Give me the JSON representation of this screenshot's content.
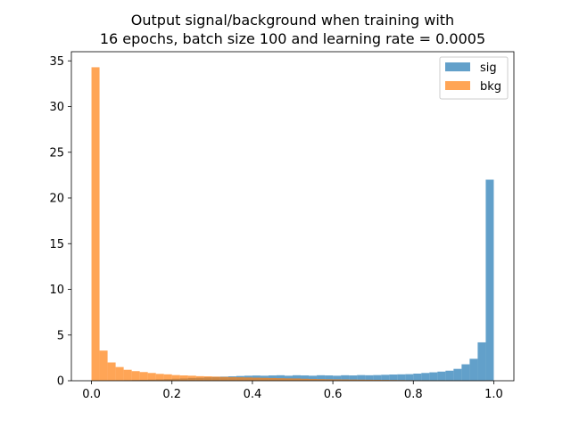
{
  "chart_data": {
    "type": "histogram",
    "title_line1": "Output signal/background when training with",
    "title_line2": "16 epochs, batch size 100 and learning rate = 0.0005",
    "xlabel": "",
    "ylabel": "",
    "xlim": [
      -0.05,
      1.05
    ],
    "ylim": [
      0,
      36
    ],
    "grid": false,
    "legend_position": "top-right",
    "x_ticks": [
      0.0,
      0.2,
      0.4,
      0.6,
      0.8,
      1.0
    ],
    "x_tick_labels": [
      "0.0",
      "0.2",
      "0.4",
      "0.6",
      "0.8",
      "1.0"
    ],
    "y_ticks": [
      0,
      5,
      10,
      15,
      20,
      25,
      30,
      35
    ],
    "y_tick_labels": [
      "0",
      "5",
      "10",
      "15",
      "20",
      "25",
      "30",
      "35"
    ],
    "bin_edges_range": [
      0.0,
      1.0
    ],
    "bin_count": 50,
    "series": [
      {
        "name": "sig",
        "color": "#1f77b4",
        "opacity": 0.7,
        "values": [
          0.02,
          0.03,
          0.04,
          0.05,
          0.06,
          0.08,
          0.1,
          0.12,
          0.15,
          0.18,
          0.22,
          0.25,
          0.3,
          0.33,
          0.38,
          0.42,
          0.45,
          0.48,
          0.52,
          0.55,
          0.57,
          0.55,
          0.58,
          0.6,
          0.55,
          0.6,
          0.58,
          0.55,
          0.6,
          0.58,
          0.55,
          0.6,
          0.58,
          0.62,
          0.6,
          0.62,
          0.65,
          0.68,
          0.7,
          0.72,
          0.78,
          0.85,
          0.92,
          1.0,
          1.1,
          1.3,
          1.8,
          2.4,
          4.2,
          22.0
        ]
      },
      {
        "name": "bkg",
        "color": "#ff7f0e",
        "opacity": 0.7,
        "values": [
          34.3,
          3.3,
          2.0,
          1.5,
          1.2,
          1.05,
          0.95,
          0.85,
          0.75,
          0.7,
          0.62,
          0.58,
          0.55,
          0.5,
          0.48,
          0.45,
          0.42,
          0.4,
          0.38,
          0.36,
          0.34,
          0.32,
          0.3,
          0.28,
          0.26,
          0.25,
          0.22,
          0.2,
          0.18,
          0.16,
          0.15,
          0.14,
          0.13,
          0.12,
          0.11,
          0.1,
          0.09,
          0.08,
          0.07,
          0.06,
          0.05,
          0.05,
          0.04,
          0.04,
          0.03,
          0.03,
          0.02,
          0.02,
          0.02,
          0.05
        ]
      }
    ]
  }
}
